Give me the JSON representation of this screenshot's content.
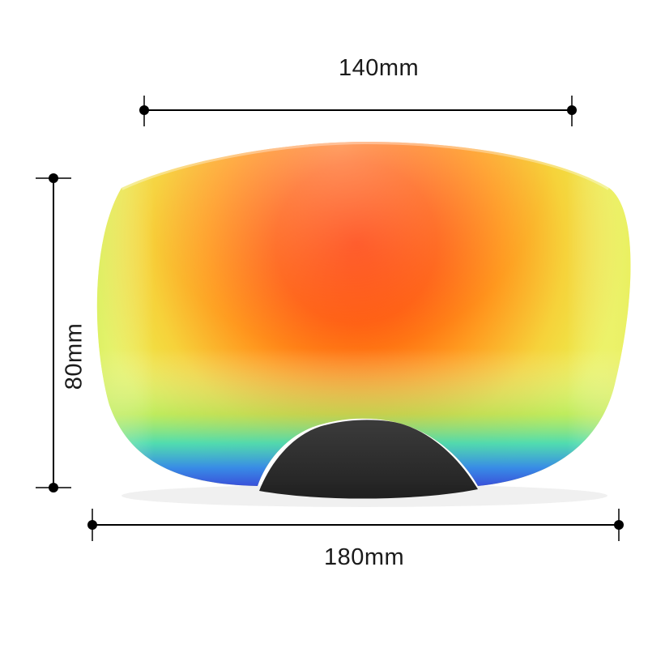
{
  "image": {
    "subject": "ski goggle lens with mirrored orange-red coating",
    "colors": {
      "center": "#ff4a00",
      "mid": "#ff9a1a",
      "edge": "#f2ee4a",
      "bottom_band": [
        "#38e2b8",
        "#2f8ff0",
        "#3a3bd8"
      ],
      "nose": "#1c1c1c",
      "dimension_lines": "#000000"
    }
  },
  "dimensions": {
    "width_top": "140mm",
    "width_bottom": "180mm",
    "height": "80mm"
  }
}
